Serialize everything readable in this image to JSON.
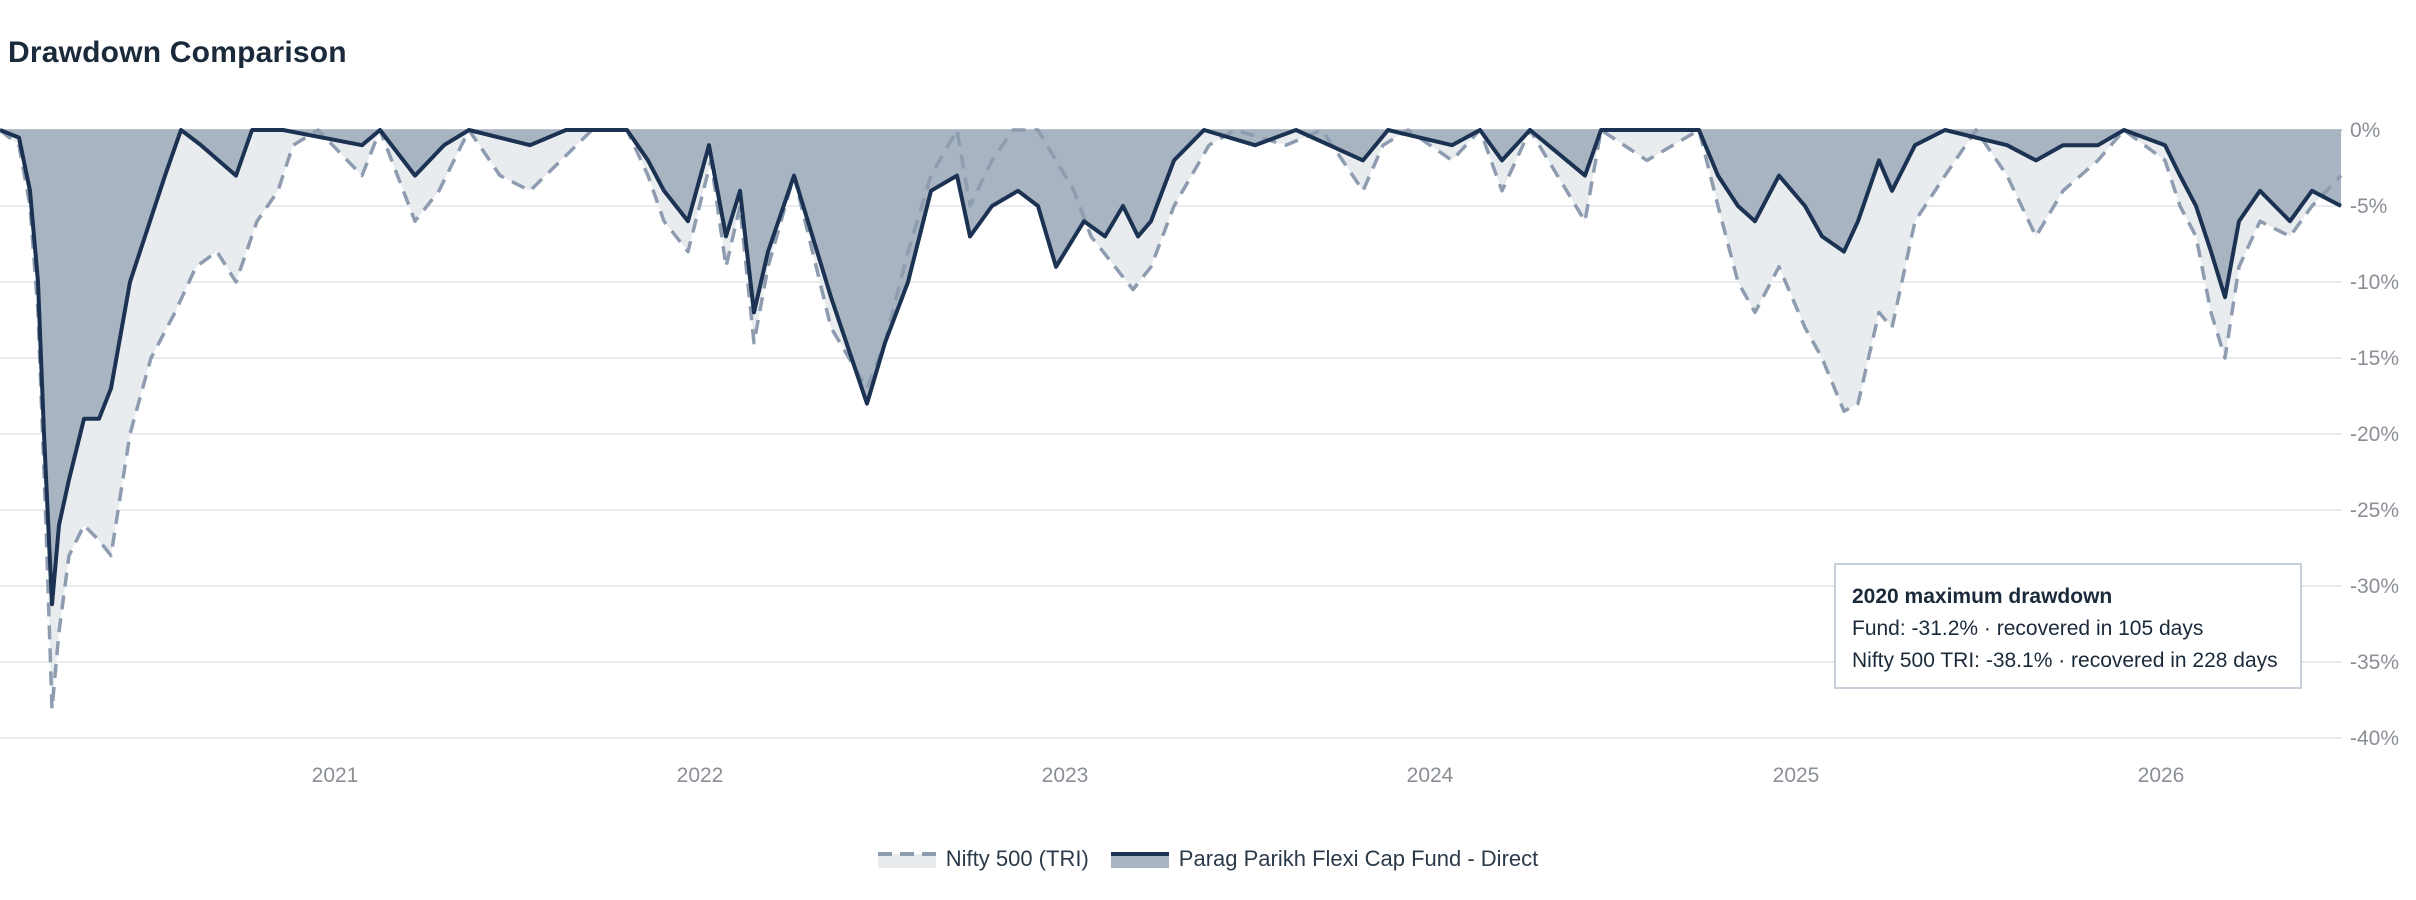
{
  "page_title": "Drawdown Comparison",
  "colors": {
    "fund_line": "#1b3253",
    "fund_fill": "#a9b4c2",
    "bench_line": "#8e9cb0",
    "bench_fill": "#e9ecef",
    "grid": "#e3e6ea"
  },
  "annotation": {
    "title": "2020 maximum drawdown",
    "line1": "Fund: -31.2% · recovered in 105 days",
    "line2": "Nifty 500 TRI: -38.1% · recovered in 228 days"
  },
  "legend": [
    {
      "label": "Nifty 500 (TRI)",
      "style": "dashed"
    },
    {
      "label": "Parag Parikh Flexi Cap Fund - Direct",
      "style": "solid"
    }
  ],
  "chart_data": {
    "type": "area",
    "title": "Drawdown Comparison",
    "x_type": "date",
    "xlim": [
      "2020-02-01",
      "2026-07-01"
    ],
    "ylim": [
      -40,
      0
    ],
    "y_ticks": [
      0,
      -5,
      -10,
      -15,
      -20,
      -25,
      -30,
      -35,
      -40
    ],
    "y_tick_labels": [
      "0%",
      "-5%",
      "-10%",
      "-15%",
      "-20%",
      "-25%",
      "-30%",
      "-35%",
      "-40%"
    ],
    "x_ticks": [
      "2021-01-01",
      "2022-01-01",
      "2023-01-01",
      "2024-01-01",
      "2025-01-01",
      "2026-01-01"
    ],
    "x_tick_labels": [
      "2021",
      "2022",
      "2023",
      "2024",
      "2025",
      "2026"
    ],
    "y_axis_side": "right",
    "grid": true,
    "legend_position": "bottom-center",
    "series": [
      {
        "name": "Nifty 500 (TRI)",
        "style": "dashed",
        "points": [
          [
            "2020-02-01",
            0
          ],
          [
            "2020-02-20",
            -1
          ],
          [
            "2020-03-02",
            -5
          ],
          [
            "2020-03-10",
            -12
          ],
          [
            "2020-03-18",
            -26
          ],
          [
            "2020-03-24",
            -38.1
          ],
          [
            "2020-03-31",
            -33
          ],
          [
            "2020-04-10",
            -28
          ],
          [
            "2020-04-25",
            -26
          ],
          [
            "2020-05-10",
            -27
          ],
          [
            "2020-05-22",
            -28
          ],
          [
            "2020-06-10",
            -20
          ],
          [
            "2020-07-01",
            -15
          ],
          [
            "2020-07-25",
            -12
          ],
          [
            "2020-08-15",
            -9
          ],
          [
            "2020-09-05",
            -8
          ],
          [
            "2020-09-24",
            -10
          ],
          [
            "2020-10-15",
            -6
          ],
          [
            "2020-11-05",
            -4
          ],
          [
            "2020-11-20",
            -1
          ],
          [
            "2020-12-15",
            0
          ],
          [
            "2021-01-28",
            -3
          ],
          [
            "2021-02-15",
            0
          ],
          [
            "2021-03-22",
            -6
          ],
          [
            "2021-04-15",
            -4
          ],
          [
            "2021-05-15",
            0
          ],
          [
            "2021-06-15",
            -3
          ],
          [
            "2021-07-15",
            -4
          ],
          [
            "2021-08-15",
            -2
          ],
          [
            "2021-09-15",
            0
          ],
          [
            "2021-10-20",
            0
          ],
          [
            "2021-11-10",
            -3
          ],
          [
            "2021-11-26",
            -6
          ],
          [
            "2021-12-20",
            -8
          ],
          [
            "2022-01-12",
            -2
          ],
          [
            "2022-01-27",
            -9
          ],
          [
            "2022-02-10",
            -5
          ],
          [
            "2022-02-24",
            -14
          ],
          [
            "2022-03-10",
            -9
          ],
          [
            "2022-04-05",
            -3
          ],
          [
            "2022-05-12",
            -13
          ],
          [
            "2022-06-17",
            -17
          ],
          [
            "2022-07-05",
            -14
          ],
          [
            "2022-07-28",
            -8
          ],
          [
            "2022-08-20",
            -3
          ],
          [
            "2022-09-15",
            0
          ],
          [
            "2022-09-28",
            -5
          ],
          [
            "2022-10-20",
            -2
          ],
          [
            "2022-11-10",
            0
          ],
          [
            "2022-12-05",
            0
          ],
          [
            "2023-01-10",
            -4
          ],
          [
            "2023-01-27",
            -7
          ],
          [
            "2023-02-20",
            -9
          ],
          [
            "2023-03-10",
            -10.5
          ],
          [
            "2023-03-28",
            -9
          ],
          [
            "2023-04-20",
            -5
          ],
          [
            "2023-05-25",
            -1
          ],
          [
            "2023-06-20",
            0
          ],
          [
            "2023-08-10",
            -1
          ],
          [
            "2023-09-15",
            0
          ],
          [
            "2023-10-26",
            -4
          ],
          [
            "2023-11-15",
            -1
          ],
          [
            "2023-12-10",
            0
          ],
          [
            "2024-01-23",
            -2
          ],
          [
            "2024-02-20",
            0
          ],
          [
            "2024-03-13",
            -4
          ],
          [
            "2024-04-10",
            0
          ],
          [
            "2024-06-04",
            -6
          ],
          [
            "2024-06-20",
            0
          ],
          [
            "2024-08-05",
            -2
          ],
          [
            "2024-09-26",
            0
          ],
          [
            "2024-10-15",
            -5
          ],
          [
            "2024-11-04",
            -10
          ],
          [
            "2024-11-21",
            -12
          ],
          [
            "2024-12-15",
            -9
          ],
          [
            "2025-01-10",
            -13
          ],
          [
            "2025-01-27",
            -15
          ],
          [
            "2025-02-18",
            -18.5
          ],
          [
            "2025-03-04",
            -18
          ],
          [
            "2025-03-25",
            -12
          ],
          [
            "2025-04-07",
            -13
          ],
          [
            "2025-04-30",
            -6
          ],
          [
            "2025-05-30",
            -3
          ],
          [
            "2025-06-30",
            0
          ],
          [
            "2025-07-31",
            -3
          ],
          [
            "2025-08-29",
            -7
          ],
          [
            "2025-09-25",
            -4
          ],
          [
            "2025-10-30",
            -2
          ],
          [
            "2025-11-25",
            0
          ],
          [
            "2026-01-05",
            -2
          ],
          [
            "2026-01-20",
            -5
          ],
          [
            "2026-02-05",
            -7
          ],
          [
            "2026-02-20",
            -12
          ],
          [
            "2026-03-06",
            -15
          ],
          [
            "2026-03-20",
            -9
          ],
          [
            "2026-04-10",
            -6
          ],
          [
            "2026-05-10",
            -7
          ],
          [
            "2026-06-01",
            -5
          ],
          [
            "2026-06-30",
            -3
          ]
        ]
      },
      {
        "name": "Parag Parikh Flexi Cap Fund - Direct",
        "style": "solid",
        "points": [
          [
            "2020-02-01",
            0
          ],
          [
            "2020-02-20",
            -0.5
          ],
          [
            "2020-03-02",
            -4
          ],
          [
            "2020-03-10",
            -10
          ],
          [
            "2020-03-16",
            -20
          ],
          [
            "2020-03-24",
            -31.2
          ],
          [
            "2020-03-31",
            -26
          ],
          [
            "2020-04-10",
            -23
          ],
          [
            "2020-04-25",
            -19
          ],
          [
            "2020-05-10",
            -19
          ],
          [
            "2020-05-22",
            -17
          ],
          [
            "2020-06-10",
            -10
          ],
          [
            "2020-06-25",
            -7
          ],
          [
            "2020-07-15",
            -3
          ],
          [
            "2020-07-31",
            0
          ],
          [
            "2020-08-20",
            -1
          ],
          [
            "2020-09-24",
            -3
          ],
          [
            "2020-10-10",
            0
          ],
          [
            "2020-11-10",
            0
          ],
          [
            "2021-01-28",
            -1
          ],
          [
            "2021-02-15",
            0
          ],
          [
            "2021-03-22",
            -3
          ],
          [
            "2021-04-20",
            -1
          ],
          [
            "2021-05-15",
            0
          ],
          [
            "2021-07-15",
            -1
          ],
          [
            "2021-08-20",
            0
          ],
          [
            "2021-10-20",
            0
          ],
          [
            "2021-11-10",
            -2
          ],
          [
            "2021-11-26",
            -4
          ],
          [
            "2021-12-20",
            -6
          ],
          [
            "2022-01-10",
            -1
          ],
          [
            "2022-01-27",
            -7
          ],
          [
            "2022-02-10",
            -4
          ],
          [
            "2022-02-24",
            -12
          ],
          [
            "2022-03-10",
            -8
          ],
          [
            "2022-04-05",
            -3
          ],
          [
            "2022-05-12",
            -11
          ],
          [
            "2022-06-17",
            -18
          ],
          [
            "2022-07-05",
            -14
          ],
          [
            "2022-07-28",
            -10
          ],
          [
            "2022-08-20",
            -4
          ],
          [
            "2022-09-15",
            -3
          ],
          [
            "2022-09-28",
            -7
          ],
          [
            "2022-10-20",
            -5
          ],
          [
            "2022-11-15",
            -4
          ],
          [
            "2022-12-05",
            -5
          ],
          [
            "2022-12-23",
            -9
          ],
          [
            "2023-01-20",
            -6
          ],
          [
            "2023-02-10",
            -7
          ],
          [
            "2023-02-28",
            -5
          ],
          [
            "2023-03-15",
            -7
          ],
          [
            "2023-03-28",
            -6
          ],
          [
            "2023-04-20",
            -2
          ],
          [
            "2023-05-20",
            0
          ],
          [
            "2023-07-10",
            -1
          ],
          [
            "2023-08-20",
            0
          ],
          [
            "2023-10-26",
            -2
          ],
          [
            "2023-11-20",
            0
          ],
          [
            "2024-01-23",
            -1
          ],
          [
            "2024-02-20",
            0
          ],
          [
            "2024-03-13",
            -2
          ],
          [
            "2024-04-10",
            0
          ],
          [
            "2024-06-04",
            -3
          ],
          [
            "2024-06-20",
            0
          ],
          [
            "2024-09-26",
            0
          ],
          [
            "2024-10-15",
            -3
          ],
          [
            "2024-11-04",
            -5
          ],
          [
            "2024-11-21",
            -6
          ],
          [
            "2024-12-15",
            -3
          ],
          [
            "2025-01-10",
            -5
          ],
          [
            "2025-01-27",
            -7
          ],
          [
            "2025-02-18",
            -8
          ],
          [
            "2025-03-04",
            -6
          ],
          [
            "2025-03-25",
            -2
          ],
          [
            "2025-04-07",
            -4
          ],
          [
            "2025-04-30",
            -1
          ],
          [
            "2025-05-30",
            0
          ],
          [
            "2025-07-31",
            -1
          ],
          [
            "2025-08-29",
            -2
          ],
          [
            "2025-09-25",
            -1
          ],
          [
            "2025-10-30",
            -1
          ],
          [
            "2025-11-25",
            0
          ],
          [
            "2026-01-05",
            -1
          ],
          [
            "2026-01-20",
            -3
          ],
          [
            "2026-02-05",
            -5
          ],
          [
            "2026-02-20",
            -8
          ],
          [
            "2026-03-06",
            -11
          ],
          [
            "2026-03-20",
            -6
          ],
          [
            "2026-04-10",
            -4
          ],
          [
            "2026-05-10",
            -6
          ],
          [
            "2026-06-01",
            -4
          ],
          [
            "2026-06-30",
            -5
          ]
        ]
      }
    ]
  }
}
